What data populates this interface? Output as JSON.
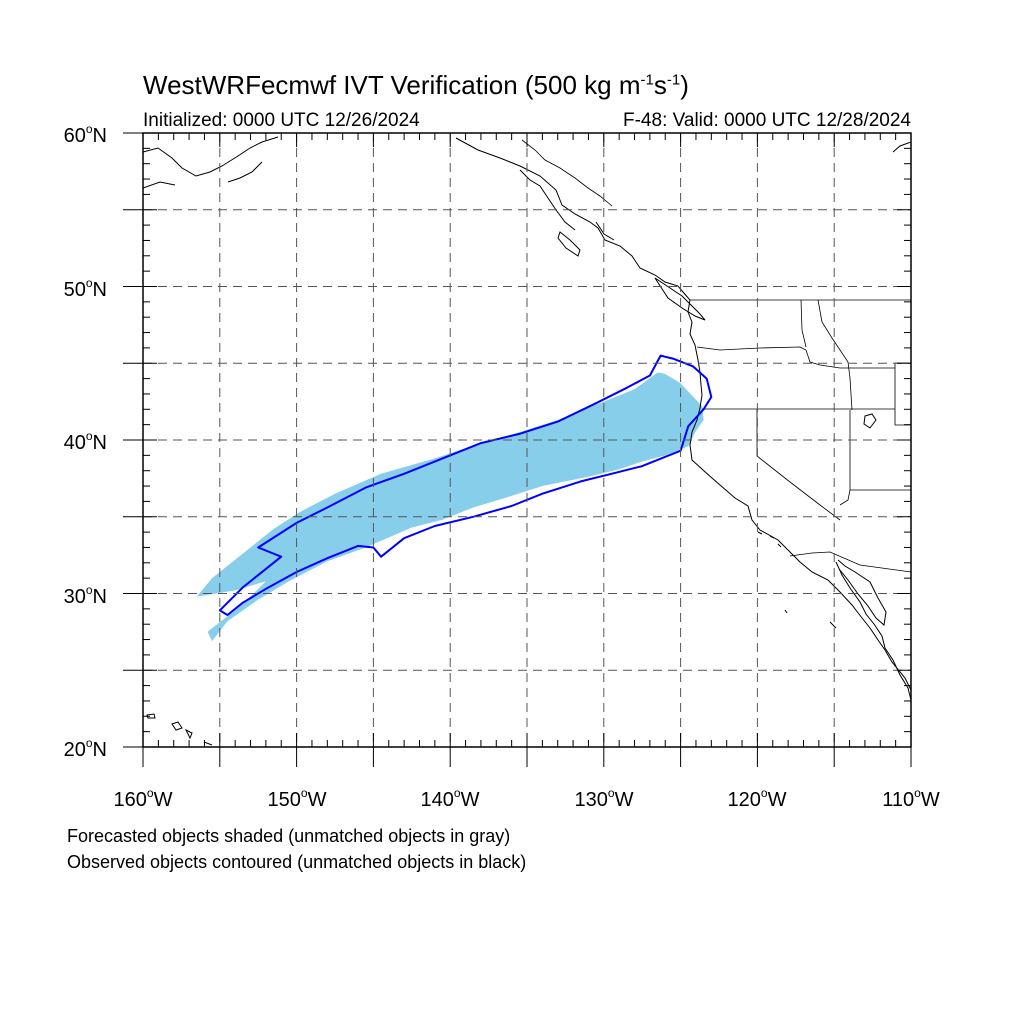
{
  "header": {
    "title_main": "WestWRFecmwf IVT Verification (500 kg m",
    "title_exp1": "-1",
    "title_mid": "s",
    "title_exp2": "-1",
    "title_end": ")",
    "initialized": "Initialized: 0000 UTC 12/26/2024",
    "valid": "F-48: Valid: 0000 UTC 12/28/2024"
  },
  "axes": {
    "lat_labels": [
      {
        "value": 60,
        "text": "60",
        "hemi": "N"
      },
      {
        "value": 50,
        "text": "50",
        "hemi": "N"
      },
      {
        "value": 40,
        "text": "40",
        "hemi": "N"
      },
      {
        "value": 30,
        "text": "30",
        "hemi": "N"
      },
      {
        "value": 20,
        "text": "20",
        "hemi": "N"
      }
    ],
    "lon_labels": [
      {
        "value": -160,
        "text": "160",
        "hemi": "W"
      },
      {
        "value": -150,
        "text": "150",
        "hemi": "W"
      },
      {
        "value": -140,
        "text": "140",
        "hemi": "W"
      },
      {
        "value": -130,
        "text": "130",
        "hemi": "W"
      },
      {
        "value": -120,
        "text": "120",
        "hemi": "W"
      },
      {
        "value": -110,
        "text": "110",
        "hemi": "W"
      }
    ],
    "lon_range": [
      -160,
      -110
    ],
    "lat_range": [
      20,
      60
    ],
    "grid_step_deg": 5
  },
  "legend": {
    "forecast_note": "Forecasted objects shaded (unmatched objects in gray)",
    "observed_note": "Observed objects contoured (unmatched objects in black)"
  },
  "colors": {
    "forecast_fill": "#87ceeb",
    "observed_contour": "#0000ff",
    "coastline": "#000000",
    "grid": "#555555"
  },
  "chart_data": {
    "type": "map",
    "projection": "cylindrical equidistant",
    "forecast_objects": [
      {
        "matched": true,
        "outline_lonlat": [
          [
            -156.5,
            29.8
          ],
          [
            -155.5,
            31.0
          ],
          [
            -153.5,
            32.6
          ],
          [
            -151.5,
            34.2
          ],
          [
            -149.8,
            35.3
          ],
          [
            -147.5,
            36.5
          ],
          [
            -144.5,
            37.8
          ],
          [
            -141.0,
            38.8
          ],
          [
            -138.0,
            39.8
          ],
          [
            -135.5,
            40.5
          ],
          [
            -133.0,
            41.3
          ],
          [
            -130.5,
            42.3
          ],
          [
            -128.0,
            43.3
          ],
          [
            -126.5,
            44.4
          ],
          [
            -126.0,
            44.3
          ],
          [
            -125.0,
            43.7
          ],
          [
            -123.6,
            42.2
          ],
          [
            -123.5,
            41.3
          ],
          [
            -124.0,
            40.6
          ],
          [
            -124.5,
            39.6
          ],
          [
            -126.0,
            39.0
          ],
          [
            -127.5,
            38.6
          ],
          [
            -129.0,
            38.1
          ],
          [
            -131.0,
            37.6
          ],
          [
            -134.0,
            37.0
          ],
          [
            -136.5,
            36.2
          ],
          [
            -138.5,
            35.6
          ],
          [
            -140.5,
            34.8
          ],
          [
            -142.5,
            34.3
          ],
          [
            -145.5,
            33.0
          ],
          [
            -148.0,
            32.1
          ],
          [
            -150.5,
            30.8
          ],
          [
            -152.5,
            29.6
          ],
          [
            -154.5,
            28.2
          ],
          [
            -155.5,
            26.9
          ],
          [
            -155.8,
            27.5
          ],
          [
            -153.5,
            29.3
          ],
          [
            -152.0,
            30.8
          ],
          [
            -154.0,
            30.2
          ]
        ]
      }
    ],
    "observed_objects": [
      {
        "matched": true,
        "outline_lonlat": [
          [
            -152.5,
            33.0
          ],
          [
            -150.0,
            34.6
          ],
          [
            -148.0,
            35.6
          ],
          [
            -145.5,
            36.9
          ],
          [
            -143.0,
            37.8
          ],
          [
            -140.5,
            38.8
          ],
          [
            -138.0,
            39.8
          ],
          [
            -135.5,
            40.4
          ],
          [
            -133.0,
            41.2
          ],
          [
            -130.5,
            42.4
          ],
          [
            -128.5,
            43.4
          ],
          [
            -127.0,
            44.2
          ],
          [
            -126.3,
            45.5
          ],
          [
            -125.5,
            45.3
          ],
          [
            -124.2,
            44.8
          ],
          [
            -123.3,
            44.0
          ],
          [
            -123.0,
            42.8
          ],
          [
            -123.5,
            42.0
          ],
          [
            -124.5,
            40.9
          ],
          [
            -125.0,
            39.3
          ],
          [
            -127.5,
            38.3
          ],
          [
            -129.5,
            37.8
          ],
          [
            -131.5,
            37.3
          ],
          [
            -134.0,
            36.5
          ],
          [
            -136.0,
            35.7
          ],
          [
            -138.5,
            35.0
          ],
          [
            -141.0,
            34.4
          ],
          [
            -143.0,
            33.6
          ],
          [
            -144.5,
            32.4
          ],
          [
            -145.0,
            33.0
          ],
          [
            -146.0,
            33.1
          ],
          [
            -148.0,
            32.3
          ],
          [
            -150.0,
            31.4
          ],
          [
            -152.0,
            30.3
          ],
          [
            -153.5,
            29.4
          ],
          [
            -154.5,
            28.6
          ],
          [
            -155.0,
            28.9
          ],
          [
            -153.5,
            30.4
          ],
          [
            -151.0,
            32.4
          ]
        ]
      }
    ]
  }
}
